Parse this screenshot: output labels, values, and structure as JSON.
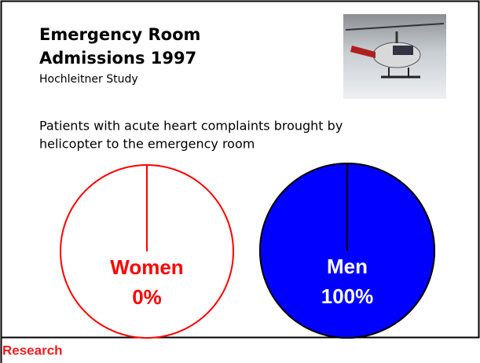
{
  "slide": {
    "title": [
      "Emergency Room",
      "Admissions 1997"
    ],
    "subtitle": "Hochleitner Study",
    "description": [
      "Patients with acute heart complaints brought by",
      "helicopter to the emergency room"
    ],
    "footer": "Research"
  },
  "chart_data": [
    {
      "type": "pie",
      "categories": [
        "Women"
      ],
      "values": [
        0
      ],
      "value_labels": [
        "0%"
      ],
      "colors": [
        "#ff0000"
      ],
      "edgecolor": "#ff0000"
    },
    {
      "type": "pie",
      "categories": [
        "Men"
      ],
      "values": [
        100
      ],
      "value_labels": [
        "100%"
      ],
      "colors": [
        "#0000ff"
      ],
      "edgecolor": "#000000"
    }
  ]
}
